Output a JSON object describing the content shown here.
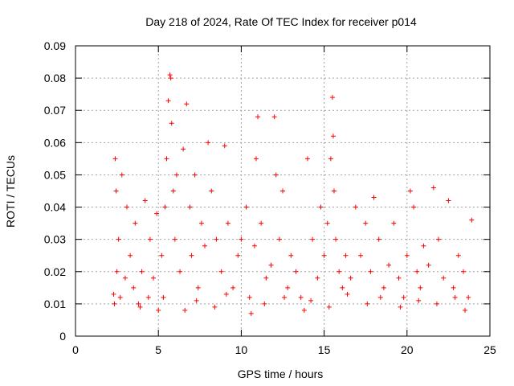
{
  "chart_data": {
    "type": "scatter",
    "title": "Day 218 of 2024, Rate Of TEC Index for receiver p014",
    "xlabel": "GPS time / hours",
    "ylabel": "ROTI / TECUs",
    "xlim": [
      0,
      25
    ],
    "ylim": [
      0,
      0.09
    ],
    "xticks": [
      0,
      5,
      10,
      15,
      20,
      25
    ],
    "xtick_labels": [
      "0",
      "5",
      "10",
      "15",
      "20",
      "25"
    ],
    "yticks": [
      0,
      0.01,
      0.02,
      0.03,
      0.04,
      0.05,
      0.06,
      0.07,
      0.08,
      0.09
    ],
    "ytick_labels": [
      "0",
      "0.01",
      "0.02",
      "0.03",
      "0.04",
      "0.05",
      "0.06",
      "0.07",
      "0.08",
      "0.09"
    ],
    "grid": true,
    "marker": "+",
    "color": "#ff0000",
    "series": [
      {
        "name": "p014",
        "x": [
          2.3,
          2.4,
          2.45,
          2.5,
          2.6,
          2.7,
          2.8,
          3.0,
          3.1,
          3.3,
          3.5,
          3.6,
          3.8,
          4.0,
          4.2,
          4.4,
          4.5,
          4.7,
          4.9,
          5.0,
          5.2,
          5.4,
          5.5,
          5.6,
          5.7,
          5.75,
          5.8,
          5.9,
          6.0,
          6.1,
          6.3,
          6.5,
          6.7,
          6.9,
          7.0,
          7.2,
          7.4,
          7.6,
          7.8,
          8.0,
          8.2,
          8.5,
          8.8,
          9.0,
          9.2,
          9.5,
          9.8,
          10.0,
          10.3,
          10.5,
          10.8,
          10.9,
          11.0,
          11.2,
          11.5,
          11.8,
          12.0,
          12.1,
          12.3,
          12.5,
          12.8,
          13.0,
          13.3,
          13.6,
          14.0,
          14.3,
          14.6,
          14.8,
          15.0,
          15.2,
          15.4,
          15.5,
          15.55,
          15.6,
          15.7,
          15.9,
          16.1,
          16.3,
          16.6,
          16.9,
          17.2,
          17.5,
          17.8,
          18.0,
          18.3,
          18.6,
          18.9,
          19.2,
          19.5,
          19.8,
          20.0,
          20.2,
          20.4,
          20.6,
          20.8,
          21.0,
          21.3,
          21.6,
          21.9,
          22.2,
          22.5,
          22.8,
          23.1,
          23.4,
          23.7,
          23.9,
          2.35,
          3.9,
          5.3,
          6.6,
          7.3,
          8.4,
          9.1,
          10.6,
          11.4,
          12.6,
          13.8,
          14.2,
          15.3,
          16.4,
          17.6,
          18.4,
          19.6,
          20.7,
          21.8,
          22.9,
          23.5
        ],
        "y": [
          0.013,
          0.055,
          0.045,
          0.02,
          0.03,
          0.012,
          0.05,
          0.018,
          0.04,
          0.025,
          0.015,
          0.035,
          0.01,
          0.02,
          0.042,
          0.012,
          0.03,
          0.018,
          0.038,
          0.008,
          0.025,
          0.04,
          0.055,
          0.073,
          0.081,
          0.08,
          0.066,
          0.045,
          0.03,
          0.05,
          0.02,
          0.058,
          0.072,
          0.04,
          0.025,
          0.05,
          0.015,
          0.035,
          0.028,
          0.06,
          0.045,
          0.03,
          0.02,
          0.059,
          0.035,
          0.015,
          0.025,
          0.03,
          0.04,
          0.012,
          0.028,
          0.055,
          0.068,
          0.035,
          0.018,
          0.022,
          0.068,
          0.05,
          0.03,
          0.045,
          0.015,
          0.025,
          0.02,
          0.012,
          0.055,
          0.03,
          0.018,
          0.04,
          0.025,
          0.035,
          0.055,
          0.074,
          0.062,
          0.045,
          0.03,
          0.02,
          0.015,
          0.025,
          0.018,
          0.04,
          0.025,
          0.035,
          0.02,
          0.043,
          0.03,
          0.015,
          0.022,
          0.035,
          0.018,
          0.012,
          0.025,
          0.045,
          0.04,
          0.02,
          0.015,
          0.028,
          0.022,
          0.046,
          0.03,
          0.018,
          0.042,
          0.015,
          0.025,
          0.02,
          0.012,
          0.036,
          0.01,
          0.009,
          0.012,
          0.008,
          0.011,
          0.009,
          0.013,
          0.007,
          0.01,
          0.012,
          0.008,
          0.011,
          0.009,
          0.013,
          0.01,
          0.012,
          0.009,
          0.011,
          0.01,
          0.012,
          0.008
        ]
      }
    ]
  }
}
